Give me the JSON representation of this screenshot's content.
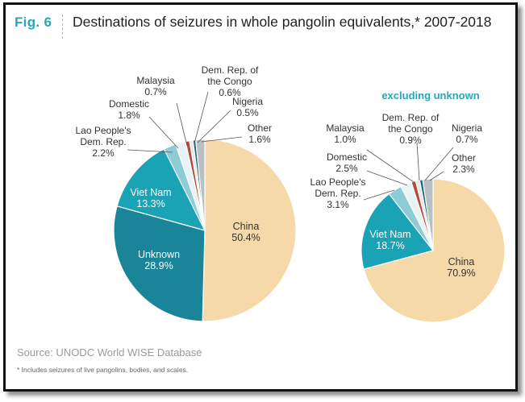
{
  "figure": {
    "number": "Fig. 6",
    "title": "Destinations of seizures in whole pangolin equivalents,* 2007-2018",
    "source": "Source: UNODC World WISE Database",
    "footnote": "* Includes seizures of live pangolins, bodies, and scales."
  },
  "colors": {
    "china": "#f5d9a8",
    "unknown": "#1a8499",
    "viet_nam": "#1aa3b5",
    "lao": "#8dccd6",
    "domestic": "#e8f3f4",
    "malaysia": "#b04a3a",
    "congo": "#e6e6e6",
    "nigeria": "#1f6a7a",
    "other": "#b8c0c4",
    "accent": "#2aa6b6"
  },
  "chart_data": [
    {
      "type": "pie",
      "title": "",
      "slices": [
        {
          "key": "china",
          "lines": [
            "China"
          ],
          "value": 50.4,
          "label": "50.4%"
        },
        {
          "key": "unknown",
          "lines": [
            "Unknown"
          ],
          "value": 28.9,
          "label": "28.9%"
        },
        {
          "key": "viet_nam",
          "lines": [
            "Viet Nam"
          ],
          "value": 13.3,
          "label": "13.3%"
        },
        {
          "key": "lao",
          "lines": [
            "Lao People's",
            "Dem. Rep."
          ],
          "value": 2.2,
          "label": "2.2%"
        },
        {
          "key": "domestic",
          "lines": [
            "Domestic"
          ],
          "value": 1.8,
          "label": "1.8%"
        },
        {
          "key": "malaysia",
          "lines": [
            "Malaysia"
          ],
          "value": 0.7,
          "label": "0.7%"
        },
        {
          "key": "congo",
          "lines": [
            "Dem. Rep. of",
            "the Congo"
          ],
          "value": 0.6,
          "label": "0.6%"
        },
        {
          "key": "nigeria",
          "lines": [
            "Nigeria"
          ],
          "value": 0.5,
          "label": "0.5%"
        },
        {
          "key": "other",
          "lines": [
            "Other"
          ],
          "value": 1.6,
          "label": "1.6%"
        }
      ]
    },
    {
      "type": "pie",
      "title": "excluding unknown",
      "slices": [
        {
          "key": "china",
          "lines": [
            "China"
          ],
          "value": 70.9,
          "label": "70.9%"
        },
        {
          "key": "viet_nam",
          "lines": [
            "Viet Nam"
          ],
          "value": 18.7,
          "label": "18.7%"
        },
        {
          "key": "lao",
          "lines": [
            "Lao People's",
            "Dem. Rep."
          ],
          "value": 3.1,
          "label": "3.1%"
        },
        {
          "key": "domestic",
          "lines": [
            "Domestic"
          ],
          "value": 2.5,
          "label": "2.5%"
        },
        {
          "key": "malaysia",
          "lines": [
            "Malaysia"
          ],
          "value": 1.0,
          "label": "1.0%"
        },
        {
          "key": "congo",
          "lines": [
            "Dem. Rep. of",
            "the Congo"
          ],
          "value": 0.9,
          "label": "0.9%"
        },
        {
          "key": "nigeria",
          "lines": [
            "Nigeria"
          ],
          "value": 0.7,
          "label": "0.7%"
        },
        {
          "key": "other",
          "lines": [
            "Other"
          ],
          "value": 2.3,
          "label": "2.3%"
        }
      ]
    }
  ]
}
